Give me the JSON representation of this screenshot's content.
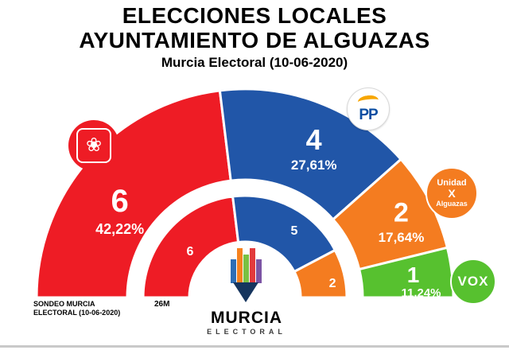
{
  "header": {
    "title_line1": "ELECCIONES LOCALES",
    "title_line2": "AYUNTAMIENTO DE ALGUAZAS",
    "subtitle": "Murcia Electoral (10-06-2020)"
  },
  "chart_data": {
    "type": "hemicycle",
    "title": "ELECCIONES LOCALES AYUNTAMIENTO DE ALGUAZAS",
    "subtitle": "Murcia Electoral (10-06-2020)",
    "total_seats": 13,
    "series": [
      {
        "party": "PSOE",
        "seats": 6,
        "percent": "42,22%",
        "color": "#ee1c25"
      },
      {
        "party": "PP",
        "seats": 4,
        "percent": "27,61%",
        "color": "#2156a8"
      },
      {
        "party": "Unidad X Alguazas",
        "seats": 2,
        "percent": "17,64%",
        "color": "#f47c20"
      },
      {
        "party": "VOX",
        "seats": 1,
        "percent": "11,24%",
        "color": "#57c12f"
      }
    ],
    "inner_ring": {
      "label": "26M",
      "segments": [
        {
          "party": "PSOE",
          "seats": 6,
          "color": "#ee1c25"
        },
        {
          "party": "PP",
          "seats": 5,
          "color": "#2156a8"
        },
        {
          "party": "Unidad X Alguazas",
          "seats": 2,
          "color": "#f47c20"
        }
      ]
    }
  },
  "badges": {
    "psoe_icon_glyph": "❀",
    "pp_label": "PP",
    "unidad": {
      "line1": "Unidad",
      "line2": "X",
      "line3": "Alguazas"
    },
    "vox_label": "VOX"
  },
  "footer": {
    "sondeo_line1": "SONDEO MURCIA",
    "sondeo_line2": "ELECTORAL (10-06-2020)",
    "inner_ring_label": "26M",
    "logo_title": "MURCIA",
    "logo_subtitle": "ELECTORAL"
  }
}
